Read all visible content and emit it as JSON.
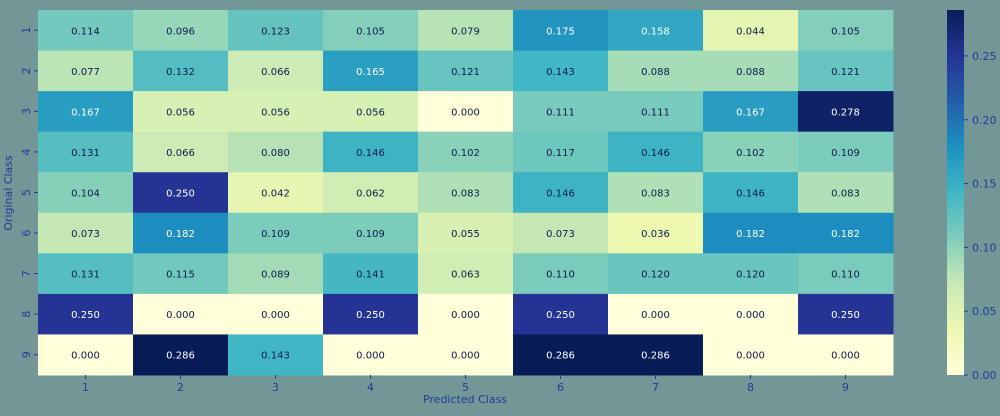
{
  "chart_data": {
    "type": "heatmap",
    "title": "",
    "xlabel": "Predicted Class",
    "ylabel": "Original Class",
    "x_categories": [
      "1",
      "2",
      "3",
      "4",
      "5",
      "6",
      "7",
      "8",
      "9"
    ],
    "y_categories": [
      "1",
      "2",
      "3",
      "4",
      "5",
      "6",
      "7",
      "8",
      "9"
    ],
    "values": [
      [
        0.114,
        0.096,
        0.123,
        0.105,
        0.079,
        0.175,
        0.158,
        0.044,
        0.105
      ],
      [
        0.077,
        0.132,
        0.066,
        0.165,
        0.121,
        0.143,
        0.088,
        0.088,
        0.121
      ],
      [
        0.167,
        0.056,
        0.056,
        0.056,
        0.0,
        0.111,
        0.111,
        0.167,
        0.278
      ],
      [
        0.131,
        0.066,
        0.08,
        0.146,
        0.102,
        0.117,
        0.146,
        0.102,
        0.109
      ],
      [
        0.104,
        0.25,
        0.042,
        0.062,
        0.083,
        0.146,
        0.083,
        0.146,
        0.083
      ],
      [
        0.073,
        0.182,
        0.109,
        0.109,
        0.055,
        0.073,
        0.036,
        0.182,
        0.182
      ],
      [
        0.131,
        0.115,
        0.089,
        0.141,
        0.063,
        0.11,
        0.12,
        0.12,
        0.11
      ],
      [
        0.25,
        0.0,
        0.0,
        0.25,
        0.0,
        0.25,
        0.0,
        0.0,
        0.25
      ],
      [
        0.0,
        0.286,
        0.143,
        0.0,
        0.0,
        0.286,
        0.286,
        0.0,
        0.0
      ]
    ],
    "colormap": "YlGnBu",
    "colorbar": {
      "range": [
        0,
        0.286
      ],
      "ticks": [
        "0.00",
        "0.05",
        "0.10",
        "0.15",
        "0.20",
        "0.25"
      ]
    },
    "annotation_format": "3 decimals",
    "grid": false,
    "legend": "colorbar right"
  },
  "colors": {
    "background": "#739696",
    "axis_text": "#1f3d99",
    "annotation_dark": "#0d1b4d",
    "annotation_light": "#ffffff"
  }
}
